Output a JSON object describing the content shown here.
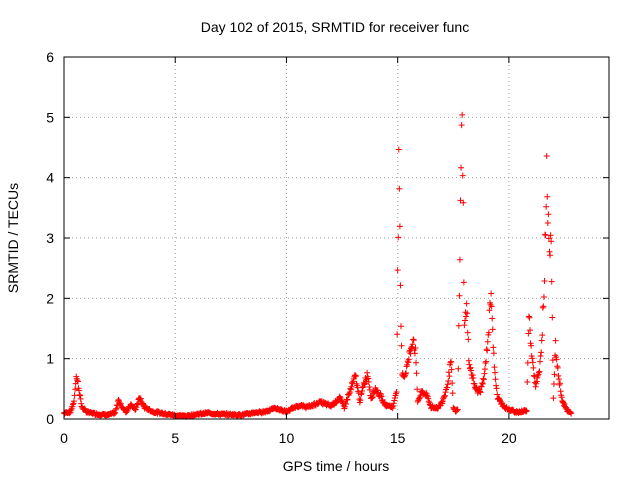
{
  "chart_data": {
    "type": "scatter",
    "title": "Day 102 of 2015, SRMTID for receiver func",
    "xlabel": "GPS time / hours",
    "ylabel": "SRMTID / TECUs",
    "xlim": [
      0,
      24.5
    ],
    "ylim": [
      0,
      6
    ],
    "x_ticks": [
      "0",
      "5",
      "10",
      "15",
      "20"
    ],
    "y_ticks": [
      "0",
      "1",
      "2",
      "3",
      "4",
      "5",
      "6"
    ],
    "grid": true,
    "marker": "+",
    "series_color": "#ff0000",
    "profile": [
      [
        0.0,
        0.1
      ],
      [
        0.3,
        0.12
      ],
      [
        0.45,
        0.3
      ],
      [
        0.55,
        0.72
      ],
      [
        0.65,
        0.55
      ],
      [
        0.8,
        0.2
      ],
      [
        1.0,
        0.12
      ],
      [
        1.5,
        0.08
      ],
      [
        2.0,
        0.07
      ],
      [
        2.3,
        0.1
      ],
      [
        2.45,
        0.32
      ],
      [
        2.6,
        0.2
      ],
      [
        2.8,
        0.12
      ],
      [
        3.0,
        0.25
      ],
      [
        3.2,
        0.15
      ],
      [
        3.4,
        0.35
      ],
      [
        3.6,
        0.2
      ],
      [
        4.0,
        0.12
      ],
      [
        5.0,
        0.06
      ],
      [
        5.5,
        0.05
      ],
      [
        6.0,
        0.08
      ],
      [
        6.5,
        0.1
      ],
      [
        7.0,
        0.08
      ],
      [
        8.0,
        0.07
      ],
      [
        8.5,
        0.1
      ],
      [
        9.0,
        0.12
      ],
      [
        9.5,
        0.18
      ],
      [
        10.0,
        0.12
      ],
      [
        10.5,
        0.22
      ],
      [
        11.0,
        0.2
      ],
      [
        11.5,
        0.28
      ],
      [
        12.0,
        0.22
      ],
      [
        12.4,
        0.35
      ],
      [
        12.6,
        0.2
      ],
      [
        12.9,
        0.5
      ],
      [
        13.1,
        0.72
      ],
      [
        13.3,
        0.3
      ],
      [
        13.5,
        0.6
      ],
      [
        13.65,
        0.75
      ],
      [
        13.8,
        0.35
      ],
      [
        14.0,
        0.5
      ],
      [
        14.2,
        0.4
      ],
      [
        14.4,
        0.25
      ],
      [
        14.6,
        0.22
      ],
      [
        14.8,
        0.2
      ],
      [
        14.95,
        0.5
      ],
      [
        15.05,
        4.15
      ],
      [
        15.1,
        3.0
      ],
      [
        15.15,
        1.5
      ],
      [
        15.2,
        0.8
      ],
      [
        15.3,
        0.7
      ],
      [
        15.5,
        1.0
      ],
      [
        15.7,
        1.35
      ],
      [
        15.8,
        1.1
      ],
      [
        15.9,
        0.3
      ],
      [
        16.1,
        0.45
      ],
      [
        16.3,
        0.4
      ],
      [
        16.5,
        0.2
      ],
      [
        16.8,
        0.18
      ],
      [
        17.0,
        0.28
      ],
      [
        17.2,
        0.5
      ],
      [
        17.4,
        0.95
      ],
      [
        17.5,
        0.2
      ],
      [
        17.6,
        0.12
      ],
      [
        17.7,
        0.15
      ],
      [
        17.8,
        2.8
      ],
      [
        17.9,
        5.3
      ],
      [
        18.0,
        1.5
      ],
      [
        18.1,
        1.9
      ],
      [
        18.2,
        1.0
      ],
      [
        18.3,
        0.8
      ],
      [
        18.5,
        0.5
      ],
      [
        18.7,
        0.45
      ],
      [
        18.9,
        0.7
      ],
      [
        19.1,
        1.5
      ],
      [
        19.2,
        2.2
      ],
      [
        19.35,
        0.8
      ],
      [
        19.5,
        0.35
      ],
      [
        19.8,
        0.2
      ],
      [
        20.0,
        0.15
      ],
      [
        20.3,
        0.12
      ],
      [
        20.6,
        0.12
      ],
      [
        20.8,
        0.15
      ],
      [
        20.9,
        1.85
      ],
      [
        21.0,
        1.2
      ],
      [
        21.2,
        0.5
      ],
      [
        21.4,
        0.9
      ],
      [
        21.5,
        1.5
      ],
      [
        21.6,
        2.4
      ],
      [
        21.7,
        4.2
      ],
      [
        21.8,
        2.8
      ],
      [
        21.9,
        3.1
      ],
      [
        22.0,
        0.35
      ],
      [
        22.1,
        1.2
      ],
      [
        22.2,
        0.8
      ],
      [
        22.4,
        0.3
      ],
      [
        22.6,
        0.15
      ],
      [
        22.8,
        0.1
      ]
    ]
  }
}
